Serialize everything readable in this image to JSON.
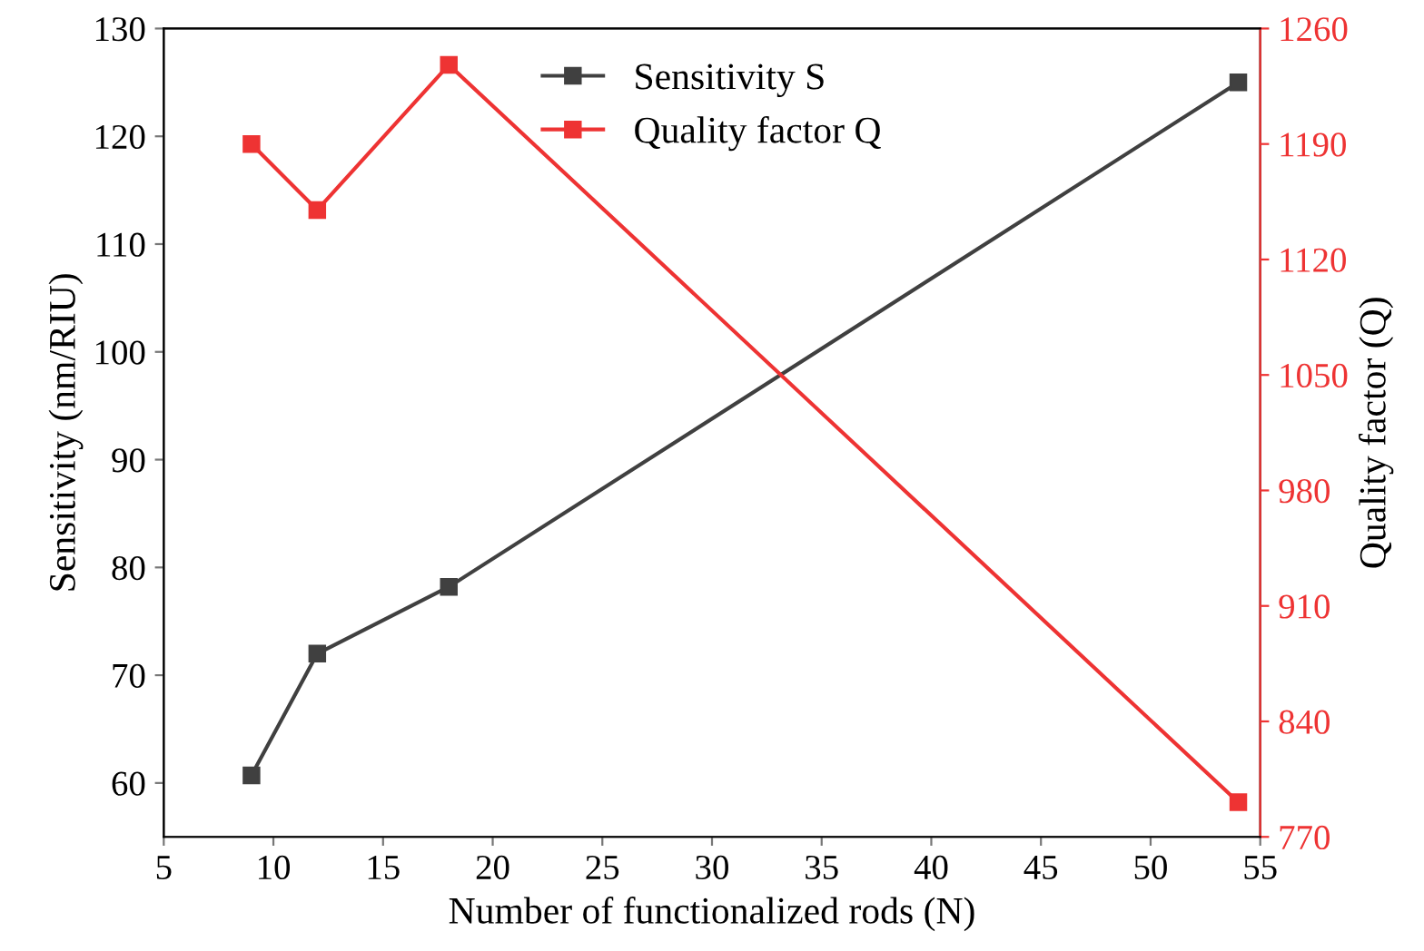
{
  "chart_data": {
    "type": "line",
    "xlabel": "Number of functionalized rods (N)",
    "ylabel": "Sensitivity (nm/RIU)",
    "y2label": "Quality factor (Q)",
    "x": [
      9,
      12,
      18,
      54
    ],
    "series": [
      {
        "name": "Sensitivity S",
        "color": "#404040",
        "values": [
          60.7,
          72,
          78.2,
          125
        ]
      },
      {
        "name": "Quality factor Q",
        "color": "#ee3333",
        "values": [
          1190,
          1150,
          1238,
          791
        ],
        "axis": "y2"
      }
    ],
    "xlim": [
      5,
      55
    ],
    "xticks": [
      5,
      10,
      15,
      20,
      25,
      30,
      35,
      40,
      45,
      50,
      55
    ],
    "ylim": [
      55,
      130
    ],
    "yticks": [
      60,
      70,
      80,
      90,
      100,
      110,
      120,
      130
    ],
    "y2lim": [
      770,
      1260
    ],
    "y2ticks": [
      770,
      840,
      910,
      980,
      1050,
      1120,
      1190,
      1260
    ],
    "marker": "square",
    "line_style": "solid",
    "grid": false,
    "legend": "top"
  }
}
